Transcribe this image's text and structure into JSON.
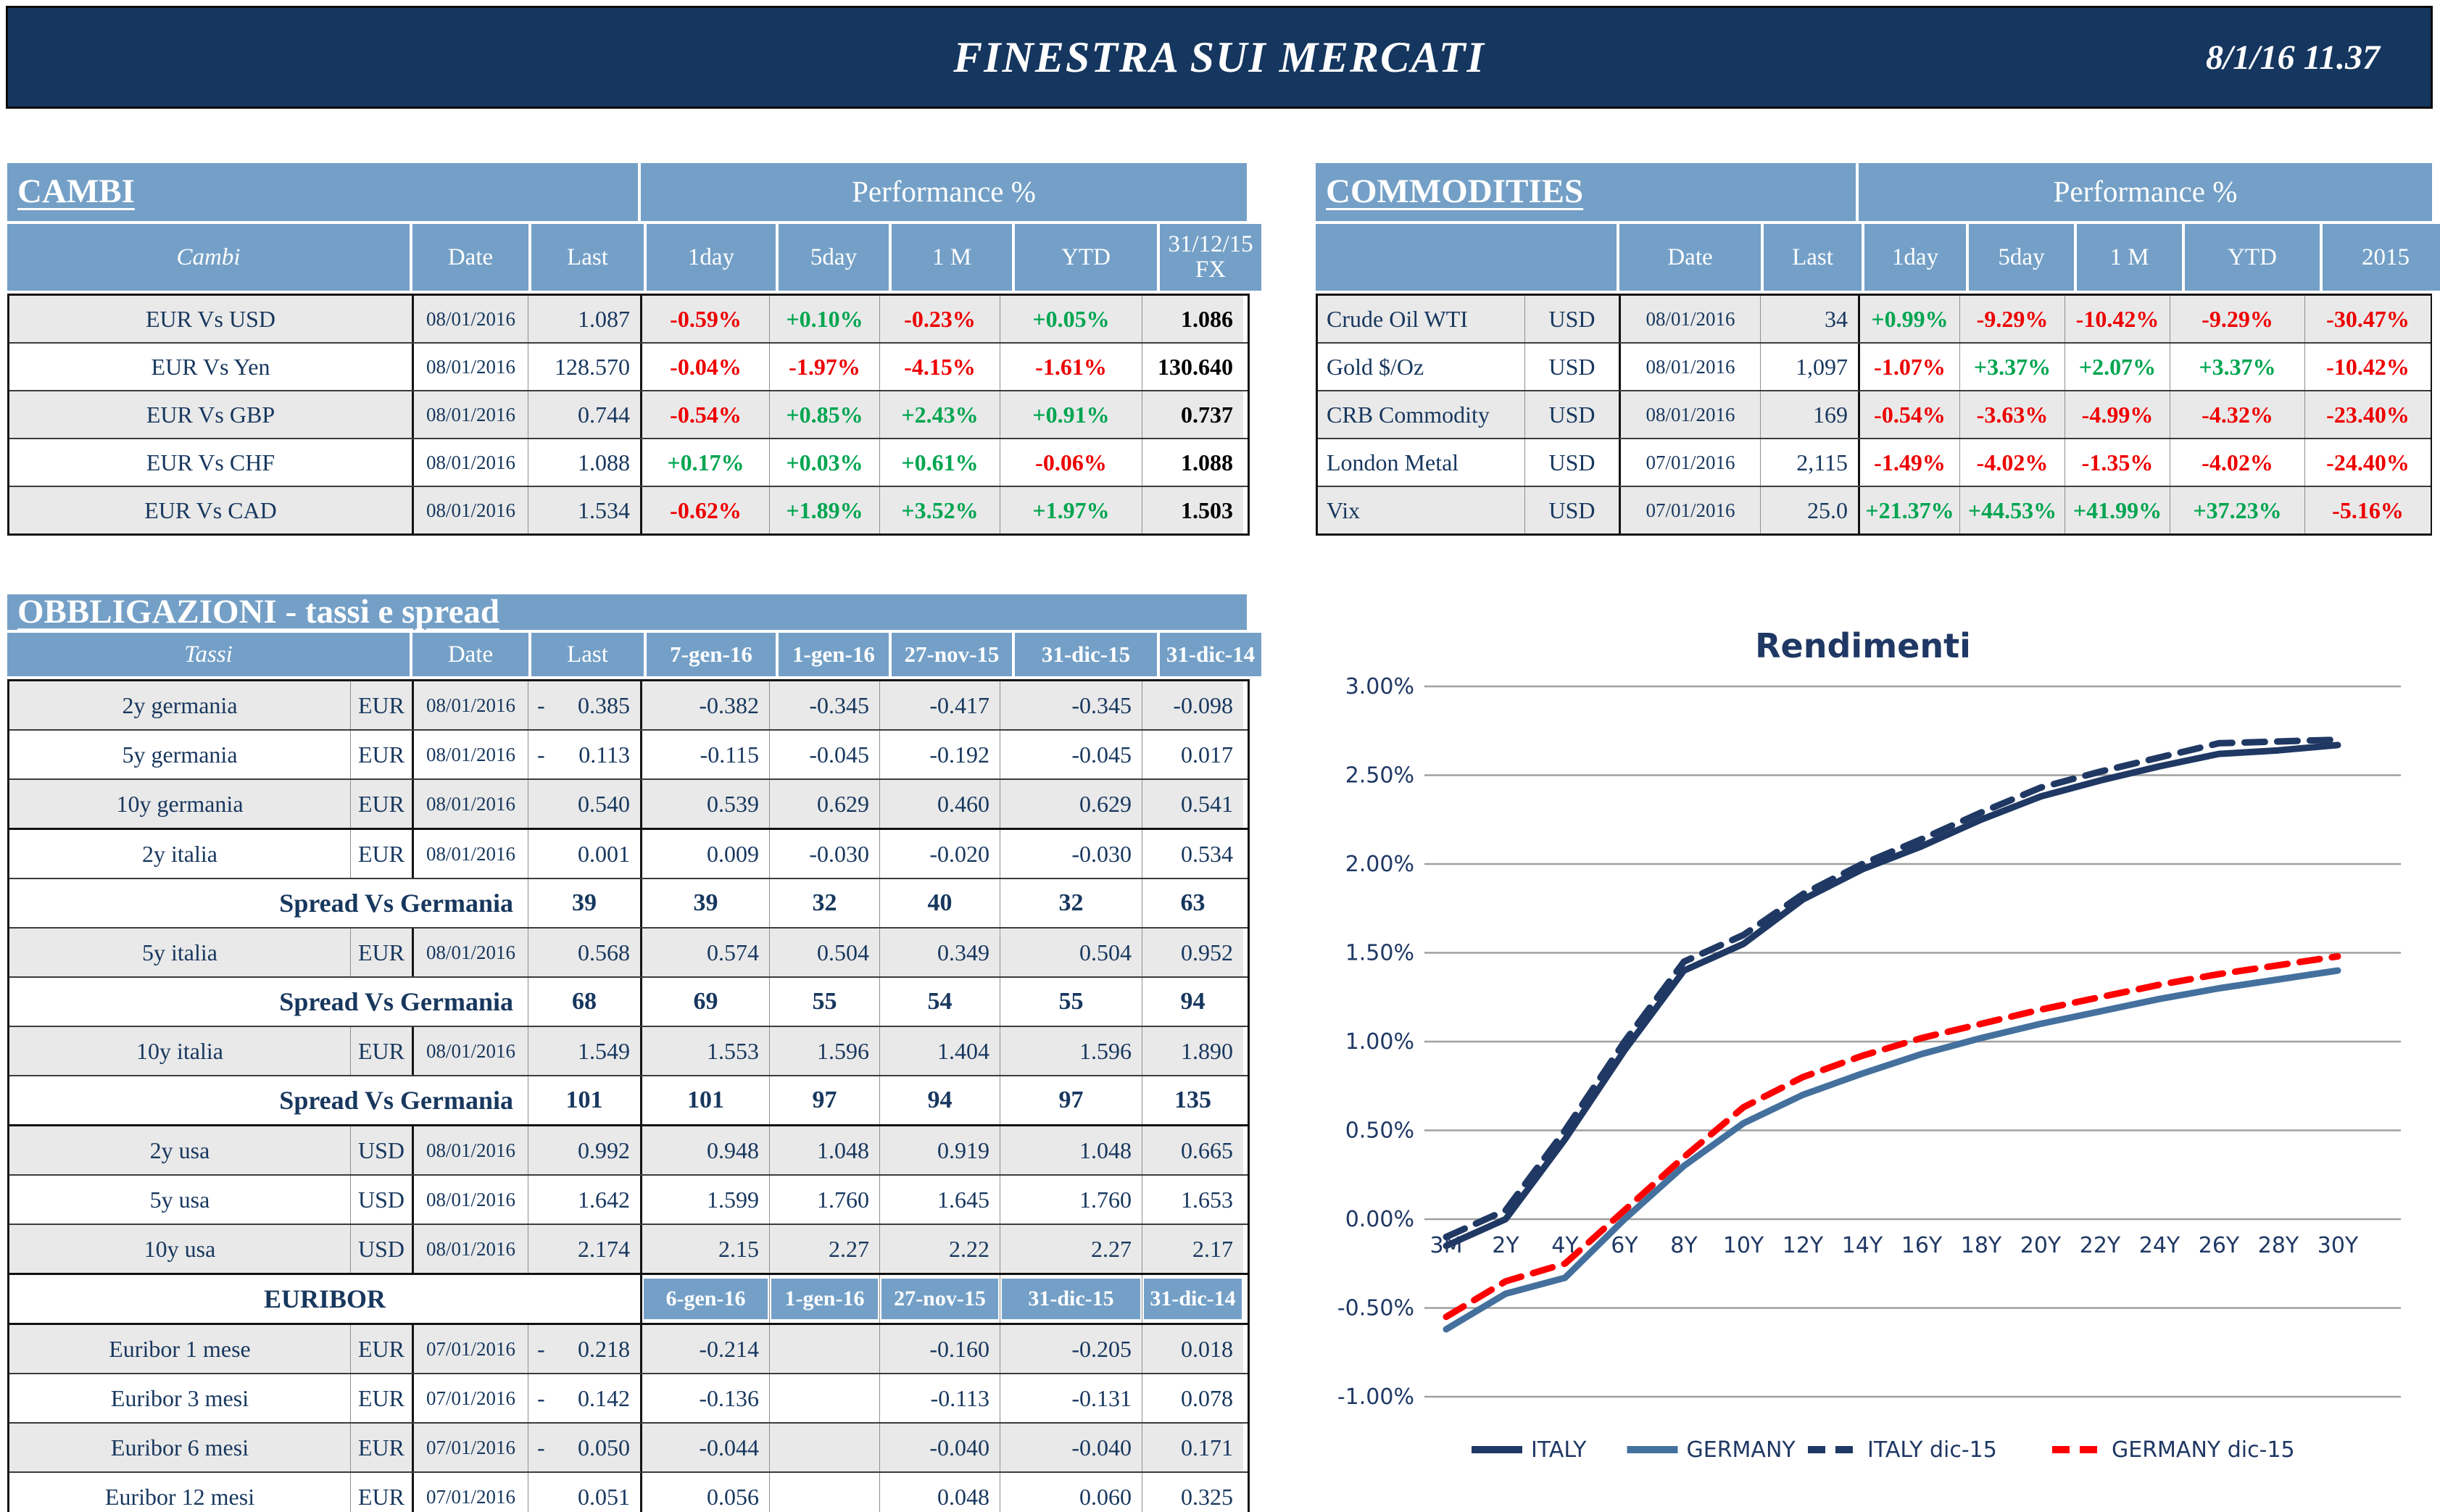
{
  "header": {
    "title": "FINESTRA SUI MERCATI",
    "datetime": "8/1/16 11.37"
  },
  "colors": {
    "banner_navy": "#14365F",
    "table_header_blue": "#74A0C7",
    "text_navy": "#17375E",
    "positive_green": "#00A550",
    "negative_red": "#EE0000",
    "stripe_gray": "#E9E9E9",
    "chart_italy_navy": "#1F3864",
    "chart_germany_blue": "#44709D",
    "chart_germany_dec_red": "#FF0000"
  },
  "cambi": {
    "title": "CAMBI",
    "performance_label": "Performance %",
    "columns": [
      "Cambi",
      "Date",
      "Last",
      "1day",
      "5day",
      "1 M",
      "YTD",
      "31/12/15 FX"
    ],
    "rows": [
      {
        "name": "EUR Vs USD",
        "date": "08/01/2016",
        "last": "1.087",
        "perf": [
          "-0.59%",
          "+0.10%",
          "-0.23%",
          "+0.05%"
        ],
        "fx": "1.086",
        "shade": true
      },
      {
        "name": "EUR Vs Yen",
        "date": "08/01/2016",
        "last": "128.570",
        "perf": [
          "-0.04%",
          "-1.97%",
          "-4.15%",
          "-1.61%"
        ],
        "fx": "130.640",
        "shade": false
      },
      {
        "name": "EUR Vs GBP",
        "date": "08/01/2016",
        "last": "0.744",
        "perf": [
          "-0.54%",
          "+0.85%",
          "+2.43%",
          "+0.91%"
        ],
        "fx": "0.737",
        "shade": true
      },
      {
        "name": "EUR Vs CHF",
        "date": "08/01/2016",
        "last": "1.088",
        "perf": [
          "+0.17%",
          "+0.03%",
          "+0.61%",
          "-0.06%"
        ],
        "fx": "1.088",
        "shade": false
      },
      {
        "name": "EUR Vs CAD",
        "date": "08/01/2016",
        "last": "1.534",
        "perf": [
          "-0.62%",
          "+1.89%",
          "+3.52%",
          "+1.97%"
        ],
        "fx": "1.503",
        "shade": true
      }
    ]
  },
  "commodities": {
    "title": "COMMODITIES",
    "performance_label": "Performance %",
    "columns": [
      "",
      "Date",
      "Last",
      "1day",
      "5day",
      "1 M",
      "YTD",
      "2015"
    ],
    "rows": [
      {
        "name": "Crude Oil WTI",
        "ccy": "USD",
        "date": "08/01/2016",
        "last": "34",
        "perf": [
          "+0.99%",
          "-9.29%",
          "-10.42%",
          "-9.29%",
          "-30.47%"
        ],
        "shade": true
      },
      {
        "name": "Gold $/Oz",
        "ccy": "USD",
        "date": "08/01/2016",
        "last": "1,097",
        "perf": [
          "-1.07%",
          "+3.37%",
          "+2.07%",
          "+3.37%",
          "-10.42%"
        ],
        "shade": false
      },
      {
        "name": "CRB Commodity",
        "ccy": "USD",
        "date": "08/01/2016",
        "last": "169",
        "perf": [
          "-0.54%",
          "-3.63%",
          "-4.99%",
          "-4.32%",
          "-23.40%"
        ],
        "shade": true
      },
      {
        "name": "London Metal",
        "ccy": "USD",
        "date": "07/01/2016",
        "last": "2,115",
        "perf": [
          "-1.49%",
          "-4.02%",
          "-1.35%",
          "-4.02%",
          "-24.40%"
        ],
        "shade": false
      },
      {
        "name": "Vix",
        "ccy": "USD",
        "date": "07/01/2016",
        "last": "25.0",
        "perf": [
          "+21.37%",
          "+44.53%",
          "+41.99%",
          "+37.23%",
          "-5.16%"
        ],
        "shade": true
      }
    ]
  },
  "obbligazioni": {
    "title": "OBBLIGAZIONI - tassi e spread",
    "header": {
      "tassi": "Tassi",
      "date": "Date",
      "last": "Last",
      "cols": [
        "7-gen-16",
        "1-gen-16",
        "27-nov-15",
        "31-dic-15",
        "31-dic-14"
      ]
    },
    "rows": [
      {
        "type": "data",
        "name": "2y germania",
        "ccy": "EUR",
        "date": "08/01/2016",
        "sign": "-",
        "last": "0.385",
        "vals": [
          "-0.382",
          "-0.345",
          "-0.417",
          "-0.345",
          "-0.098"
        ],
        "shade": true,
        "htop": false
      },
      {
        "type": "data",
        "name": "5y germania",
        "ccy": "EUR",
        "date": "08/01/2016",
        "sign": "-",
        "last": "0.113",
        "vals": [
          "-0.115",
          "-0.045",
          "-0.192",
          "-0.045",
          "0.017"
        ],
        "shade": false,
        "htop": false
      },
      {
        "type": "data",
        "name": "10y germania",
        "ccy": "EUR",
        "date": "08/01/2016",
        "sign": "",
        "last": "0.540",
        "vals": [
          "0.539",
          "0.629",
          "0.460",
          "0.629",
          "0.541"
        ],
        "shade": true,
        "htop": false
      },
      {
        "type": "data",
        "name": "2y italia",
        "ccy": "EUR",
        "date": "08/01/2016",
        "sign": "",
        "last": "0.001",
        "vals": [
          "0.009",
          "-0.030",
          "-0.020",
          "-0.030",
          "0.534"
        ],
        "shade": false,
        "htop": true
      },
      {
        "type": "spread",
        "label": "Spread Vs Germania",
        "last": "39",
        "vals": [
          "39",
          "32",
          "40",
          "32",
          "63"
        ],
        "shade": false,
        "htop": false
      },
      {
        "type": "data",
        "name": "5y italia",
        "ccy": "EUR",
        "date": "08/01/2016",
        "sign": "",
        "last": "0.568",
        "vals": [
          "0.574",
          "0.504",
          "0.349",
          "0.504",
          "0.952"
        ],
        "shade": true,
        "htop": false
      },
      {
        "type": "spread",
        "label": "Spread Vs Germania",
        "last": "68",
        "vals": [
          "69",
          "55",
          "54",
          "55",
          "94"
        ],
        "shade": false,
        "htop": false
      },
      {
        "type": "data",
        "name": "10y italia",
        "ccy": "EUR",
        "date": "08/01/2016",
        "sign": "",
        "last": "1.549",
        "vals": [
          "1.553",
          "1.596",
          "1.404",
          "1.596",
          "1.890"
        ],
        "shade": true,
        "htop": false
      },
      {
        "type": "spread",
        "label": "Spread Vs Germania",
        "last": "101",
        "vals": [
          "101",
          "97",
          "94",
          "97",
          "135"
        ],
        "shade": false,
        "htop": false
      },
      {
        "type": "data",
        "name": "2y usa",
        "ccy": "USD",
        "date": "08/01/2016",
        "sign": "",
        "last": "0.992",
        "vals": [
          "0.948",
          "1.048",
          "0.919",
          "1.048",
          "0.665"
        ],
        "shade": true,
        "htop": true
      },
      {
        "type": "data",
        "name": "5y usa",
        "ccy": "USD",
        "date": "08/01/2016",
        "sign": "",
        "last": "1.642",
        "vals": [
          "1.599",
          "1.760",
          "1.645",
          "1.760",
          "1.653"
        ],
        "shade": false,
        "htop": false
      },
      {
        "type": "data",
        "name": "10y usa",
        "ccy": "USD",
        "date": "08/01/2016",
        "sign": "",
        "last": "2.174",
        "vals": [
          "2.15",
          "2.27",
          "2.22",
          "2.27",
          "2.17"
        ],
        "shade": true,
        "htop": false
      },
      {
        "type": "euribor_header",
        "label": "EURIBOR",
        "cols": [
          "6-gen-16",
          "1-gen-16",
          "27-nov-15",
          "31-dic-15",
          "31-dic-14"
        ],
        "shade": false,
        "htop": true
      },
      {
        "type": "data",
        "name": "Euribor 1 mese",
        "ccy": "EUR",
        "date": "07/01/2016",
        "sign": "-",
        "last": "0.218",
        "vals": [
          "-0.214",
          "",
          "-0.160",
          "-0.205",
          "0.018"
        ],
        "shade": true,
        "htop": true
      },
      {
        "type": "data",
        "name": "Euribor 3 mesi",
        "ccy": "EUR",
        "date": "07/01/2016",
        "sign": "-",
        "last": "0.142",
        "vals": [
          "-0.136",
          "",
          "-0.113",
          "-0.131",
          "0.078"
        ],
        "shade": false,
        "htop": false
      },
      {
        "type": "data",
        "name": "Euribor 6 mesi",
        "ccy": "EUR",
        "date": "07/01/2016",
        "sign": "-",
        "last": "0.050",
        "vals": [
          "-0.044",
          "",
          "-0.040",
          "-0.040",
          "0.171"
        ],
        "shade": true,
        "htop": false
      },
      {
        "type": "data",
        "name": "Euribor 12 mesi",
        "ccy": "EUR",
        "date": "07/01/2016",
        "sign": "",
        "last": "0.051",
        "vals": [
          "0.056",
          "",
          "0.048",
          "0.060",
          "0.325"
        ],
        "shade": false,
        "htop": false
      }
    ]
  },
  "chart_data": {
    "type": "line",
    "title": "Rendimenti",
    "categories": [
      "3M",
      "2Y",
      "4Y",
      "6Y",
      "8Y",
      "10Y",
      "12Y",
      "14Y",
      "16Y",
      "18Y",
      "20Y",
      "22Y",
      "24Y",
      "26Y",
      "28Y",
      "30Y"
    ],
    "ylim": [
      -1.0,
      3.0
    ],
    "ytick_step": 0.5,
    "y_unit": "%",
    "grid": true,
    "legend_position": "bottom",
    "series": [
      {
        "name": "ITALY",
        "color": "#1F3864",
        "dash": false,
        "values": [
          -0.15,
          0.0,
          0.45,
          0.95,
          1.4,
          1.55,
          1.8,
          1.97,
          2.1,
          2.25,
          2.38,
          2.47,
          2.55,
          2.62,
          2.64,
          2.67
        ]
      },
      {
        "name": "GERMANY",
        "color": "#44709D",
        "dash": false,
        "values": [
          -0.62,
          -0.42,
          -0.33,
          0.0,
          0.3,
          0.54,
          0.7,
          0.82,
          0.93,
          1.02,
          1.1,
          1.17,
          1.24,
          1.3,
          1.35,
          1.4
        ]
      },
      {
        "name": "ITALY dic-15",
        "color": "#1F3864",
        "dash": true,
        "values": [
          -0.1,
          0.05,
          0.5,
          1.0,
          1.45,
          1.6,
          1.83,
          2.0,
          2.14,
          2.29,
          2.43,
          2.52,
          2.6,
          2.68,
          2.69,
          2.7
        ]
      },
      {
        "name": "GERMANY dic-15",
        "color": "#FF0000",
        "dash": true,
        "values": [
          -0.55,
          -0.35,
          -0.25,
          0.05,
          0.35,
          0.63,
          0.8,
          0.92,
          1.02,
          1.1,
          1.18,
          1.25,
          1.32,
          1.38,
          1.43,
          1.48
        ]
      }
    ]
  }
}
